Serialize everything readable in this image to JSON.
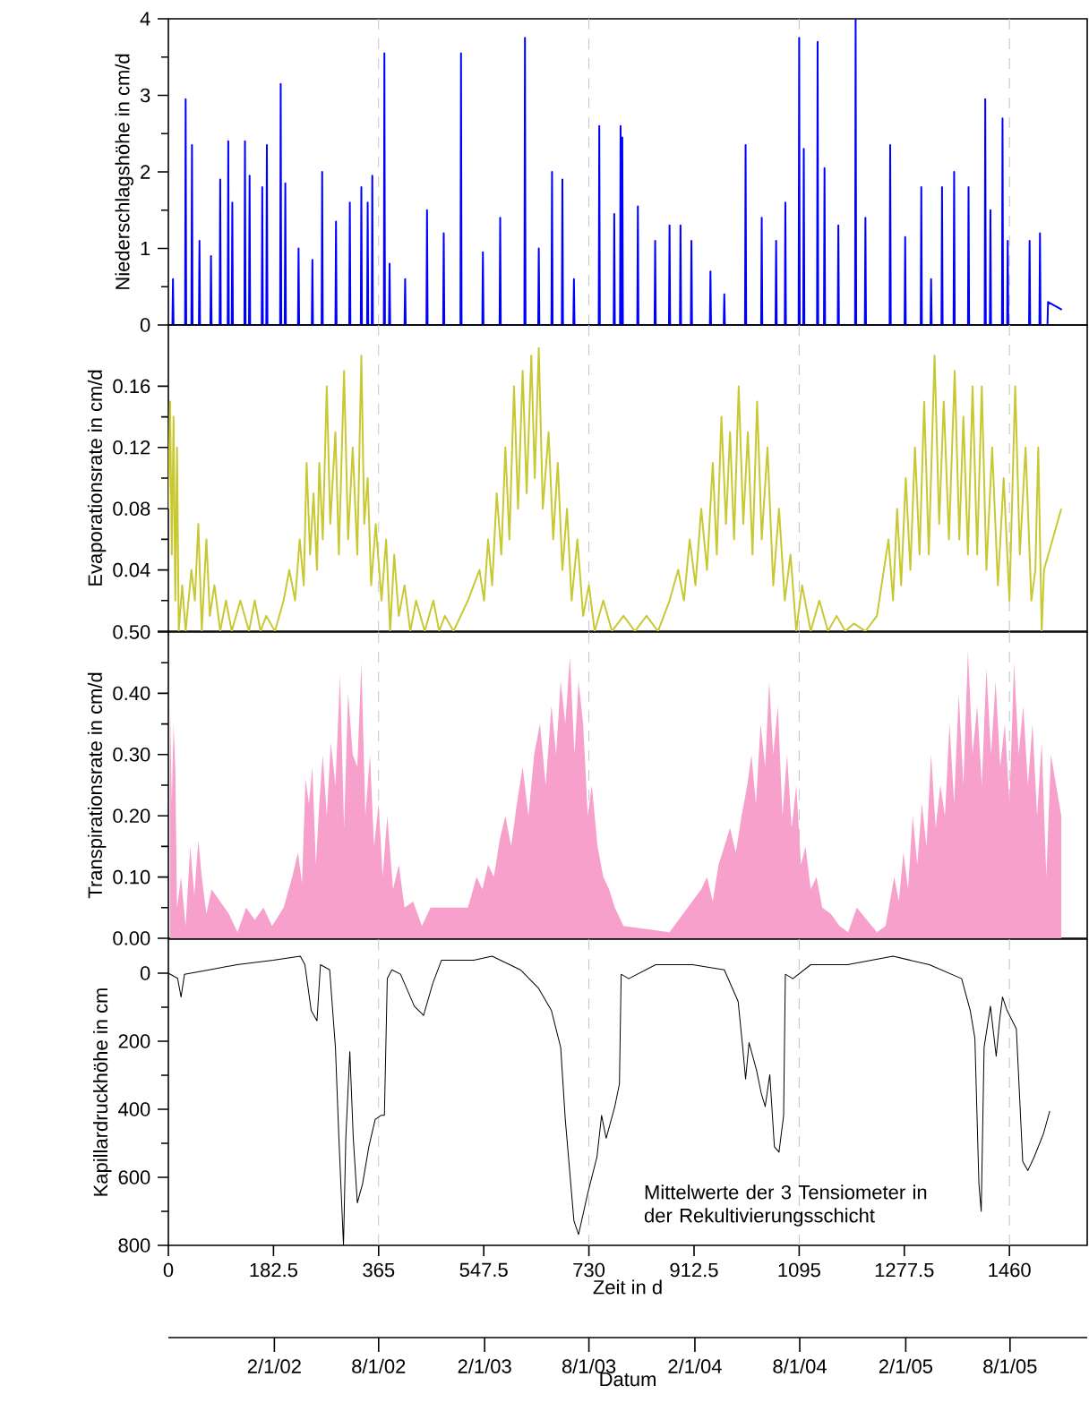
{
  "chart_data": [
    {
      "type": "line",
      "ylabel": "Niederschlagshöhe in cm/d",
      "xlim": [
        0,
        1595
      ],
      "ylim": [
        0,
        4
      ],
      "yticks": [
        0,
        1,
        2,
        3,
        4
      ],
      "tick_labels": "y",
      "ref_lines": [
        {
          "axis": "x",
          "value": 365,
          "color": "#c8c8c8",
          "line_style": "dashed"
        },
        {
          "axis": "x",
          "value": 730,
          "color": "#c8c8c8",
          "line_style": "dashed"
        },
        {
          "axis": "x",
          "value": 1095,
          "color": "#c8c8c8",
          "line_style": "dashed"
        },
        {
          "axis": "x",
          "value": 1460,
          "color": "#c8c8c8",
          "line_style": "dashed"
        }
      ],
      "series": [
        {
          "color": "#0000ff",
          "x": [
            0,
            7,
            8,
            9,
            29,
            30,
            31,
            40,
            41,
            42,
            53,
            54,
            55,
            73,
            74,
            75,
            89,
            90,
            91,
            103,
            104,
            105,
            110,
            111,
            112,
            132,
            133,
            134,
            140,
            141,
            142,
            162,
            163,
            164,
            170,
            171,
            172,
            194,
            195,
            196,
            202,
            203,
            204,
            225,
            226,
            227,
            249,
            250,
            251,
            266,
            267,
            268,
            290,
            291,
            292,
            314,
            315,
            316,
            334,
            335,
            336,
            345,
            346,
            347,
            353,
            354,
            355,
            374,
            375,
            376,
            383,
            384,
            385,
            410,
            411,
            412,
            448,
            449,
            450,
            477,
            478,
            479,
            507,
            508,
            509,
            545,
            546,
            547,
            575,
            576,
            577,
            618,
            619,
            620,
            642,
            643,
            644,
            665,
            666,
            667,
            683,
            684,
            685,
            703,
            704,
            705,
            747,
            748,
            749,
            773,
            774,
            775,
            784,
            785,
            786,
            787,
            788,
            789,
            814,
            815,
            816,
            844,
            845,
            846,
            869,
            870,
            871,
            888,
            889,
            890,
            907,
            908,
            909,
            940,
            941,
            942,
            964,
            965,
            966,
            1001,
            1002,
            1003,
            1029,
            1030,
            1031,
            1054,
            1055,
            1056,
            1070,
            1071,
            1072,
            1094,
            1095,
            1096,
            1102,
            1103,
            1104,
            1126,
            1127,
            1128,
            1138,
            1139,
            1140,
            1162,
            1163,
            1164,
            1192,
            1193,
            1194,
            1209,
            1210,
            1211,
            1252,
            1253,
            1254,
            1278,
            1279,
            1280,
            1306,
            1307,
            1308,
            1323,
            1324,
            1325,
            1342,
            1343,
            1344,
            1363,
            1364,
            1365,
            1388,
            1389,
            1390,
            1417,
            1418,
            1419,
            1426,
            1427,
            1428,
            1447,
            1448,
            1449,
            1456,
            1457,
            1458,
            1494,
            1495,
            1496,
            1512,
            1513,
            1514,
            1526,
            1527,
            1551
          ],
          "values": [
            0,
            0,
            0.6,
            0,
            0,
            2.95,
            0,
            0,
            2.35,
            0,
            0,
            1.1,
            0,
            0,
            0.9,
            0,
            0,
            1.9,
            0,
            0,
            2.4,
            0,
            0,
            1.6,
            0,
            0,
            2.4,
            0,
            0,
            1.95,
            0,
            0,
            1.8,
            0,
            0,
            2.35,
            0,
            0,
            3.15,
            0,
            0,
            1.85,
            0,
            0,
            1.0,
            0,
            0,
            0.85,
            0,
            0,
            2.0,
            0,
            0,
            1.35,
            0,
            0,
            1.6,
            0,
            0,
            1.8,
            0,
            0,
            1.6,
            0,
            0,
            1.95,
            0,
            0,
            3.55,
            0,
            0,
            0.8,
            0,
            0,
            0.6,
            0,
            0,
            1.5,
            0,
            0,
            1.2,
            0,
            0,
            3.55,
            0,
            0,
            0.95,
            0,
            0,
            1.4,
            0,
            0,
            3.75,
            0,
            0,
            1.0,
            0,
            0,
            2.0,
            0,
            0,
            1.9,
            0,
            0,
            0.6,
            0,
            0,
            2.6,
            0,
            0,
            1.45,
            0,
            0,
            2.6,
            0,
            0,
            2.45,
            0,
            0,
            1.55,
            0,
            0,
            1.1,
            0,
            0,
            1.3,
            0,
            0,
            1.3,
            0,
            0,
            1.1,
            0,
            0,
            0.7,
            0,
            0,
            0.4,
            0,
            0,
            2.35,
            0,
            0,
            1.4,
            0,
            0,
            1.1,
            0,
            0,
            1.6,
            0,
            0,
            3.75,
            0,
            0,
            2.3,
            0,
            0,
            3.7,
            0,
            0,
            2.05,
            0,
            0,
            1.3,
            0,
            0,
            4.0,
            0,
            0,
            1.4,
            0,
            0,
            2.35,
            0,
            0,
            1.15,
            0,
            0,
            1.8,
            0,
            0,
            0.6,
            0,
            0,
            1.8,
            0,
            0,
            2.0,
            0,
            0,
            1.8,
            0,
            0,
            2.95,
            0,
            0,
            1.5,
            0,
            0,
            2.7,
            0,
            0,
            1.1,
            0,
            0,
            1.1,
            0,
            0,
            1.2,
            0,
            0,
            0.3,
            0.2
          ]
        }
      ]
    },
    {
      "type": "line",
      "ylabel": "Evaporationsrate in cm/d",
      "xlim": [
        0,
        1595
      ],
      "ylim": [
        0,
        0.2
      ],
      "yticks": [
        {
          "value": 0,
          "label": null
        },
        0.04,
        0.08,
        0.12,
        0.16
      ],
      "tick_labels": "y",
      "ref_lines": [
        {
          "axis": "x",
          "value": 365,
          "color": "#c8c8c8",
          "line_style": "dashed"
        },
        {
          "axis": "x",
          "value": 730,
          "color": "#c8c8c8",
          "line_style": "dashed"
        },
        {
          "axis": "x",
          "value": 1095,
          "color": "#c8c8c8",
          "line_style": "dashed"
        },
        {
          "axis": "x",
          "value": 1460,
          "color": "#c8c8c8",
          "line_style": "dashed"
        }
      ],
      "series": [
        {
          "color": "#c8c832",
          "x": [
            0,
            3,
            6,
            9,
            12,
            15,
            18,
            24,
            30,
            40,
            46,
            52,
            58,
            66,
            72,
            80,
            90,
            100,
            110,
            125,
            140,
            150,
            160,
            170,
            185,
            200,
            210,
            220,
            228,
            235,
            240,
            246,
            252,
            258,
            262,
            268,
            275,
            281,
            290,
            296,
            305,
            312,
            320,
            328,
            335,
            340,
            346,
            352,
            360,
            370,
            378,
            385,
            392,
            400,
            410,
            420,
            430,
            445,
            460,
            470,
            480,
            495,
            520,
            540,
            548,
            555,
            562,
            570,
            578,
            585,
            592,
            600,
            607,
            615,
            622,
            630,
            636,
            643,
            650,
            660,
            668,
            676,
            684,
            692,
            700,
            710,
            720,
            730,
            740,
            755,
            770,
            790,
            810,
            830,
            850,
            870,
            885,
            895,
            905,
            915,
            925,
            935,
            945,
            952,
            960,
            968,
            975,
            982,
            990,
            998,
            1006,
            1014,
            1022,
            1030,
            1040,
            1050,
            1060,
            1070,
            1080,
            1090,
            1100,
            1115,
            1130,
            1145,
            1160,
            1175,
            1190,
            1210,
            1230,
            1250,
            1258,
            1265,
            1272,
            1280,
            1288,
            1296,
            1304,
            1312,
            1320,
            1330,
            1338,
            1346,
            1355,
            1365,
            1373,
            1380,
            1388,
            1396,
            1404,
            1412,
            1420,
            1430,
            1440,
            1450,
            1460,
            1470,
            1478,
            1488,
            1498,
            1505,
            1510,
            1516,
            1520,
            1550
          ],
          "values": [
            0.08,
            0.15,
            0.05,
            0.14,
            0.02,
            0.12,
            0.0,
            0.03,
            0.0,
            0.04,
            0.02,
            0.07,
            0.0,
            0.06,
            0.01,
            0.03,
            0.0,
            0.02,
            0.0,
            0.02,
            0.0,
            0.02,
            0.0,
            0.01,
            0.0,
            0.02,
            0.04,
            0.02,
            0.06,
            0.03,
            0.11,
            0.05,
            0.09,
            0.04,
            0.11,
            0.06,
            0.16,
            0.07,
            0.13,
            0.05,
            0.17,
            0.06,
            0.12,
            0.05,
            0.18,
            0.07,
            0.1,
            0.03,
            0.07,
            0.02,
            0.06,
            0.0,
            0.05,
            0.01,
            0.03,
            0.0,
            0.02,
            0.0,
            0.02,
            0.0,
            0.01,
            0.0,
            0.02,
            0.04,
            0.02,
            0.06,
            0.03,
            0.09,
            0.05,
            0.12,
            0.06,
            0.16,
            0.08,
            0.17,
            0.09,
            0.18,
            0.1,
            0.185,
            0.08,
            0.13,
            0.06,
            0.11,
            0.04,
            0.08,
            0.02,
            0.06,
            0.01,
            0.03,
            0.0,
            0.02,
            0.0,
            0.01,
            0.0,
            0.01,
            0.0,
            0.02,
            0.04,
            0.02,
            0.06,
            0.03,
            0.08,
            0.04,
            0.11,
            0.05,
            0.14,
            0.07,
            0.13,
            0.06,
            0.16,
            0.07,
            0.13,
            0.05,
            0.15,
            0.06,
            0.12,
            0.03,
            0.08,
            0.02,
            0.05,
            0.0,
            0.03,
            0.0,
            0.02,
            0.0,
            0.01,
            0.0,
            0.005,
            0.0,
            0.01,
            0.06,
            0.02,
            0.08,
            0.03,
            0.1,
            0.04,
            0.12,
            0.05,
            0.15,
            0.05,
            0.18,
            0.07,
            0.15,
            0.06,
            0.17,
            0.06,
            0.14,
            0.05,
            0.16,
            0.05,
            0.16,
            0.04,
            0.12,
            0.03,
            0.1,
            0.02,
            0.16,
            0.05,
            0.12,
            0.02,
            0.04,
            0.12,
            0.0,
            0.04,
            0.08
          ]
        }
      ]
    },
    {
      "type": "area",
      "ylabel": "Transpirationsrate in cm/d",
      "xlim": [
        0,
        1595
      ],
      "ylim": [
        0,
        0.5
      ],
      "yticks": [
        {
          "value": 0,
          "label": "0.00"
        },
        {
          "value": 0.1,
          "label": "0.10"
        },
        {
          "value": 0.2,
          "label": "0.20"
        },
        {
          "value": 0.3,
          "label": "0.30"
        },
        {
          "value": 0.4,
          "label": "0.40"
        },
        {
          "value": 0.5,
          "label": "0.50"
        }
      ],
      "tick_labels": "y",
      "ref_lines": [
        {
          "axis": "x",
          "value": 365,
          "color": "#c8c8c8",
          "line_style": "dashed"
        },
        {
          "axis": "x",
          "value": 730,
          "color": "#c8c8c8",
          "line_style": "dashed"
        },
        {
          "axis": "x",
          "value": 1095,
          "color": "#c8c8c8",
          "line_style": "dashed"
        },
        {
          "axis": "x",
          "value": 1460,
          "color": "#c8c8c8",
          "line_style": "dashed"
        }
      ],
      "series": [
        {
          "color": "#f7a0cc",
          "x": [
            3,
            6,
            9,
            12,
            15,
            22,
            30,
            38,
            45,
            52,
            58,
            66,
            75,
            90,
            105,
            120,
            135,
            150,
            165,
            180,
            200,
            215,
            225,
            232,
            238,
            244,
            250,
            256,
            262,
            268,
            275,
            282,
            290,
            298,
            305,
            312,
            320,
            328,
            335,
            342,
            350,
            357,
            365,
            372,
            380,
            390,
            400,
            410,
            425,
            440,
            455,
            520,
            535,
            545,
            555,
            565,
            575,
            585,
            595,
            605,
            615,
            625,
            635,
            645,
            655,
            665,
            673,
            681,
            689,
            697,
            705,
            712,
            720,
            728,
            735,
            745,
            755,
            765,
            775,
            790,
            870,
            925,
            935,
            945,
            955,
            965,
            975,
            985,
            995,
            1005,
            1012,
            1020,
            1028,
            1036,
            1043,
            1050,
            1058,
            1066,
            1074,
            1082,
            1090,
            1098,
            1106,
            1115,
            1125,
            1135,
            1150,
            1165,
            1180,
            1195,
            1230,
            1245,
            1260,
            1268,
            1276,
            1284,
            1292,
            1300,
            1308,
            1316,
            1324,
            1332,
            1340,
            1348,
            1356,
            1364,
            1372,
            1380,
            1388,
            1396,
            1404,
            1412,
            1420,
            1428,
            1436,
            1444,
            1452,
            1460,
            1468,
            1476,
            1484,
            1492,
            1500,
            1508,
            1516,
            1524,
            1532,
            1550
          ],
          "values": [
            0.38,
            0.22,
            0.35,
            0.28,
            0.05,
            0.1,
            0.02,
            0.15,
            0.07,
            0.16,
            0.1,
            0.04,
            0.08,
            0.06,
            0.04,
            0.01,
            0.05,
            0.03,
            0.05,
            0.02,
            0.05,
            0.1,
            0.14,
            0.09,
            0.26,
            0.22,
            0.28,
            0.12,
            0.22,
            0.3,
            0.2,
            0.32,
            0.25,
            0.43,
            0.18,
            0.4,
            0.3,
            0.28,
            0.45,
            0.2,
            0.3,
            0.15,
            0.22,
            0.1,
            0.2,
            0.08,
            0.12,
            0.05,
            0.06,
            0.02,
            0.05,
            0.05,
            0.1,
            0.08,
            0.12,
            0.1,
            0.16,
            0.2,
            0.15,
            0.22,
            0.28,
            0.2,
            0.3,
            0.35,
            0.25,
            0.38,
            0.3,
            0.42,
            0.35,
            0.46,
            0.3,
            0.42,
            0.35,
            0.2,
            0.25,
            0.15,
            0.1,
            0.08,
            0.05,
            0.02,
            0.01,
            0.08,
            0.1,
            0.06,
            0.12,
            0.15,
            0.18,
            0.14,
            0.2,
            0.25,
            0.3,
            0.22,
            0.35,
            0.28,
            0.42,
            0.3,
            0.38,
            0.2,
            0.3,
            0.18,
            0.25,
            0.12,
            0.15,
            0.08,
            0.1,
            0.05,
            0.04,
            0.02,
            0.01,
            0.05,
            0.01,
            0.02,
            0.1,
            0.06,
            0.14,
            0.08,
            0.2,
            0.12,
            0.22,
            0.15,
            0.3,
            0.18,
            0.25,
            0.2,
            0.35,
            0.22,
            0.4,
            0.25,
            0.47,
            0.3,
            0.38,
            0.25,
            0.44,
            0.3,
            0.42,
            0.28,
            0.35,
            0.22,
            0.45,
            0.3,
            0.38,
            0.25,
            0.35,
            0.2,
            0.32,
            0.1,
            0.3,
            0.2
          ]
        }
      ]
    },
    {
      "type": "line",
      "ylabel": "Kapillardruckhöhe in cm",
      "xlabel": "Zeit in d",
      "x2label": "Datum",
      "xlim": [
        0,
        1595
      ],
      "xticks": [
        0,
        182.5,
        365,
        547.5,
        730,
        912.5,
        1095,
        1277.5,
        1460
      ],
      "x2lim": [
        "2001-08-01",
        "2005-12-13"
      ],
      "x2ticks": [
        {
          "value": "2002-02-01",
          "label": "2/1/02"
        },
        {
          "value": "2002-08-01",
          "label": "8/1/02"
        },
        {
          "value": "2003-02-01",
          "label": "2/1/03"
        },
        {
          "value": "2003-08-01",
          "label": "8/1/03"
        },
        {
          "value": "2004-02-01",
          "label": "2/1/04"
        },
        {
          "value": "2004-08-01",
          "label": "8/1/04"
        },
        {
          "value": "2005-02-01",
          "label": "2/1/05"
        },
        {
          "value": "2005-08-01",
          "label": "8/1/05"
        }
      ],
      "ylim": [
        800,
        -100
      ],
      "yticks": [
        0,
        200,
        400,
        600,
        800
      ],
      "annotations": [
        "Mittelwerte der 3 Tensiometer in der Rekultivierungsschicht"
      ],
      "ref_lines": [
        {
          "axis": "x",
          "value": 365,
          "color": "#c8c8c8",
          "line_style": "dashed"
        },
        {
          "axis": "x",
          "value": 730,
          "color": "#c8c8c8",
          "line_style": "dashed"
        },
        {
          "axis": "x",
          "value": 1095,
          "color": "#c8c8c8",
          "line_style": "dashed"
        },
        {
          "axis": "x",
          "value": 1460,
          "color": "#c8c8c8",
          "line_style": "dashed"
        }
      ],
      "series": [
        {
          "color": "#000000",
          "x": [
            0,
            16,
            22,
            28,
            71,
            119,
            182,
            229,
            237,
            248,
            258,
            264,
            280,
            290,
            296,
            304,
            308,
            315,
            321,
            328,
            337,
            348,
            359,
            369,
            375,
            380,
            388,
            403,
            427,
            443,
            459,
            474,
            530,
            562,
            611,
            642,
            665,
            681,
            689,
            704,
            712,
            728,
            744,
            752,
            760,
            775,
            783,
            786,
            799,
            846,
            910,
            965,
            989,
            997,
            1002,
            1008,
            1021,
            1029,
            1036,
            1044,
            1052,
            1060,
            1068,
            1071,
            1084,
            1115,
            1179,
            1258,
            1321,
            1377,
            1392,
            1400,
            1407,
            1411,
            1416,
            1427,
            1437,
            1443,
            1448,
            1456,
            1472,
            1483,
            1492,
            1503,
            1519,
            1530
          ],
          "values": [
            0,
            15,
            70,
            3,
            -10,
            -25,
            -38,
            -50,
            -25,
            110,
            140,
            -25,
            -10,
            218,
            485,
            800,
            485,
            230,
            485,
            675,
            620,
            510,
            430,
            418,
            418,
            16,
            -10,
            3,
            97,
            124,
            30,
            -38,
            -38,
            -50,
            -10,
            43,
            110,
            218,
            430,
            728,
            768,
            647,
            540,
            418,
            485,
            392,
            325,
            3,
            16,
            -25,
            -25,
            -10,
            83,
            218,
            311,
            204,
            285,
            352,
            392,
            298,
            510,
            526,
            418,
            3,
            16,
            -25,
            -25,
            -50,
            -25,
            16,
            110,
            191,
            620,
            700,
            218,
            97,
            244,
            137,
            70,
            110,
            164,
            553,
            580,
            540,
            472,
            405
          ]
        }
      ]
    }
  ]
}
